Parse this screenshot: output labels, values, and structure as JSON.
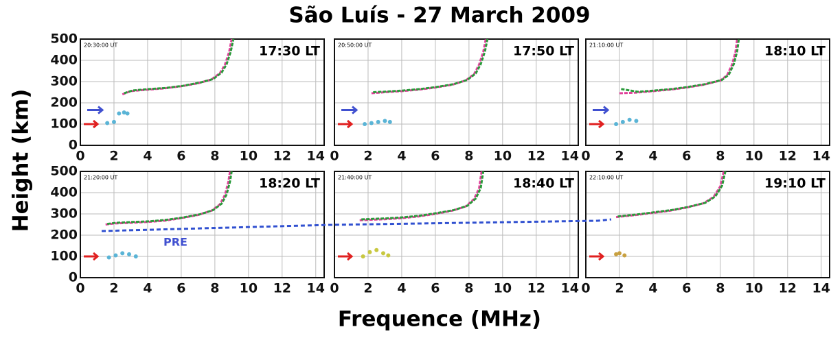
{
  "title": "São Luís - 27 March 2009",
  "xlabel": "Frequence (MHz)",
  "ylabel": "Height (km)",
  "annotation": "PRE",
  "chart_data": [
    {
      "type": "line",
      "ut": "20:30:00 UT",
      "lt": "17:30 LT",
      "xlim": [
        0,
        14.5
      ],
      "ylim": [
        0,
        500
      ],
      "xticks": [
        0,
        2,
        4,
        6,
        8,
        10,
        12,
        14
      ],
      "yticks": [
        0,
        100,
        200,
        300,
        400,
        500
      ],
      "grid": true,
      "series": [
        {
          "color": "#e0409a",
          "x": [
            2.5,
            3,
            4,
            5,
            6,
            7,
            7.8,
            8.3,
            8.6,
            8.85,
            9.0
          ],
          "values": [
            240,
            255,
            262,
            268,
            278,
            292,
            310,
            340,
            380,
            440,
            500
          ]
        },
        {
          "color": "#2a9a3a",
          "x": [
            2.6,
            3.1,
            4.1,
            5.1,
            6.1,
            7.1,
            7.9,
            8.4,
            8.7,
            8.95,
            9.1
          ],
          "values": [
            245,
            258,
            265,
            270,
            280,
            295,
            312,
            342,
            382,
            442,
            500
          ]
        },
        {
          "color": "#5ab4d6",
          "kind": "scatter",
          "x": [
            1.6,
            2.0,
            2.3,
            2.6,
            2.8
          ],
          "values": [
            105,
            110,
            150,
            155,
            150
          ]
        }
      ]
    },
    {
      "type": "line",
      "ut": "20:50:00 UT",
      "lt": "17:50 LT",
      "xlim": [
        0,
        14.5
      ],
      "ylim": [
        0,
        500
      ],
      "xticks": [
        0,
        2,
        4,
        6,
        8,
        10,
        12,
        14
      ],
      "yticks": [
        0,
        100,
        200,
        300,
        400,
        500
      ],
      "grid": true,
      "series": [
        {
          "color": "#e0409a",
          "x": [
            2.2,
            3,
            4,
            5,
            6,
            7,
            7.8,
            8.3,
            8.6,
            8.85,
            9.0
          ],
          "values": [
            245,
            250,
            255,
            262,
            272,
            285,
            305,
            335,
            380,
            440,
            500
          ]
        },
        {
          "color": "#2a9a3a",
          "x": [
            2.3,
            3.1,
            4.1,
            5.1,
            6.1,
            7.1,
            7.9,
            8.4,
            8.7,
            8.95,
            9.1
          ],
          "values": [
            250,
            253,
            258,
            265,
            275,
            288,
            308,
            338,
            382,
            442,
            500
          ]
        },
        {
          "color": "#5ab4d6",
          "kind": "scatter",
          "x": [
            1.8,
            2.2,
            2.6,
            3.0,
            3.3
          ],
          "values": [
            100,
            105,
            110,
            115,
            110
          ]
        }
      ]
    },
    {
      "type": "line",
      "ut": "21:10:00 UT",
      "lt": "18:10 LT",
      "xlim": [
        0,
        14.5
      ],
      "ylim": [
        0,
        500
      ],
      "xticks": [
        0,
        2,
        4,
        6,
        8,
        10,
        12,
        14
      ],
      "yticks": [
        0,
        100,
        200,
        300,
        400,
        500
      ],
      "grid": true,
      "series": [
        {
          "color": "#e0409a",
          "x": [
            2,
            3,
            4,
            5,
            6,
            7,
            8,
            8.4,
            8.7,
            8.9,
            9.0
          ],
          "values": [
            245,
            248,
            255,
            262,
            272,
            285,
            305,
            330,
            380,
            440,
            500
          ]
        },
        {
          "color": "#2a9a3a",
          "x": [
            2.1,
            3.1,
            4.1,
            5.1,
            6.1,
            7.1,
            8.1,
            8.5,
            8.8,
            9.0,
            9.1
          ],
          "values": [
            265,
            252,
            258,
            265,
            275,
            288,
            308,
            332,
            382,
            442,
            500
          ]
        },
        {
          "color": "#5ab4d6",
          "kind": "scatter",
          "x": [
            1.8,
            2.2,
            2.6,
            3.0
          ],
          "values": [
            100,
            110,
            120,
            115
          ]
        }
      ]
    },
    {
      "type": "line",
      "ut": "21:20:00 UT",
      "lt": "18:20 LT",
      "xlim": [
        0,
        14.5
      ],
      "ylim": [
        0,
        500
      ],
      "xticks": [
        0,
        2,
        4,
        6,
        8,
        10,
        12,
        14
      ],
      "yticks": [
        0,
        100,
        200,
        300,
        400,
        500
      ],
      "grid": true,
      "series": [
        {
          "color": "#e0409a",
          "x": [
            1.5,
            2,
            3,
            4,
            5,
            6,
            7,
            7.8,
            8.3,
            8.6,
            8.8,
            8.9
          ],
          "values": [
            250,
            255,
            258,
            262,
            268,
            280,
            295,
            315,
            345,
            390,
            450,
            500
          ]
        },
        {
          "color": "#2a9a3a",
          "x": [
            1.6,
            2.1,
            3.1,
            4.1,
            5.1,
            6.1,
            7.1,
            7.9,
            8.4,
            8.7,
            8.9,
            9.0
          ],
          "values": [
            253,
            258,
            262,
            265,
            272,
            283,
            298,
            318,
            348,
            392,
            452,
            500
          ]
        },
        {
          "color": "#5ab4d6",
          "kind": "scatter",
          "x": [
            1.7,
            2.1,
            2.5,
            2.9,
            3.3
          ],
          "values": [
            95,
            105,
            115,
            110,
            100
          ]
        }
      ]
    },
    {
      "type": "line",
      "ut": "21:40:00 UT",
      "lt": "18:40 LT",
      "xlim": [
        0,
        14.5
      ],
      "ylim": [
        0,
        500
      ],
      "xticks": [
        0,
        2,
        4,
        6,
        8,
        10,
        12,
        14
      ],
      "yticks": [
        0,
        100,
        200,
        300,
        400,
        500
      ],
      "grid": true,
      "series": [
        {
          "color": "#e0409a",
          "x": [
            1.5,
            2,
            3,
            4,
            5,
            6,
            7,
            7.8,
            8.3,
            8.6,
            8.75
          ],
          "values": [
            270,
            272,
            275,
            280,
            288,
            300,
            315,
            335,
            370,
            420,
            500
          ]
        },
        {
          "color": "#2a9a3a",
          "x": [
            1.6,
            2.1,
            3.1,
            4.1,
            5.1,
            6.1,
            7.1,
            7.9,
            8.4,
            8.7,
            8.85
          ],
          "values": [
            274,
            276,
            279,
            284,
            292,
            304,
            318,
            338,
            372,
            422,
            500
          ]
        },
        {
          "color": "#c8c840",
          "kind": "scatter",
          "x": [
            1.7,
            2.1,
            2.5,
            2.9,
            3.2
          ],
          "values": [
            100,
            120,
            130,
            115,
            105
          ]
        }
      ]
    },
    {
      "type": "line",
      "ut": "22:10:00 UT",
      "lt": "19:10 LT",
      "xlim": [
        0,
        14.5
      ],
      "ylim": [
        0,
        500
      ],
      "xticks": [
        0,
        2,
        4,
        6,
        8,
        10,
        12,
        14
      ],
      "yticks": [
        0,
        100,
        200,
        300,
        400,
        500
      ],
      "grid": true,
      "series": [
        {
          "color": "#e0409a",
          "x": [
            1.8,
            3,
            4,
            5,
            6,
            7,
            7.6,
            8,
            8.2
          ],
          "values": [
            285,
            295,
            305,
            315,
            330,
            350,
            380,
            430,
            500
          ]
        },
        {
          "color": "#2a9a3a",
          "x": [
            1.9,
            3.1,
            4.1,
            5.1,
            6.1,
            7.1,
            7.7,
            8.1,
            8.3
          ],
          "values": [
            288,
            298,
            308,
            318,
            333,
            352,
            382,
            432,
            500
          ]
        },
        {
          "color": "#c8a040",
          "kind": "scatter",
          "x": [
            1.8,
            2.0,
            2.3
          ],
          "values": [
            110,
            115,
            105
          ]
        }
      ]
    }
  ]
}
